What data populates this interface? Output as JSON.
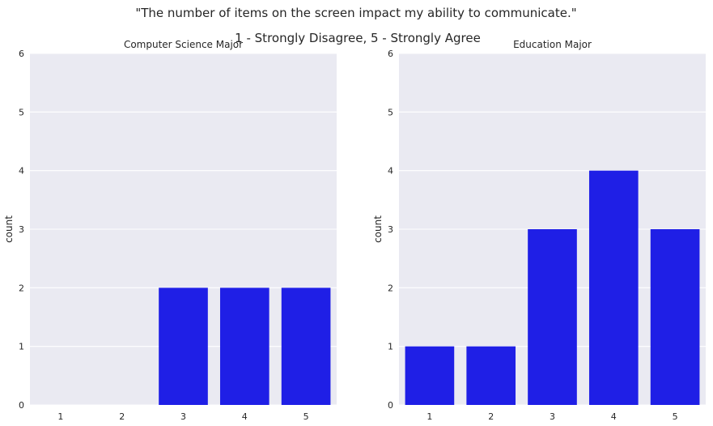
{
  "figure": {
    "suptitle": "\"The number of items on the screen impact my ability to communicate.\"",
    "subtitle": "1 - Strongly Disagree, 5 - Strongly Agree"
  },
  "colors": {
    "axes_background": "#eaeaf2",
    "bar": "#1f1fe6",
    "grid": "#ffffff"
  },
  "chart_data": [
    {
      "type": "bar",
      "title": "Computer Science Major",
      "xlabel": "",
      "ylabel": "count",
      "categories": [
        "1",
        "2",
        "3",
        "4",
        "5"
      ],
      "values": [
        0,
        0,
        2,
        2,
        2
      ],
      "ylim": [
        0,
        6
      ],
      "yticks": [
        "0",
        "1",
        "2",
        "3",
        "4",
        "5",
        "6"
      ],
      "grid": true
    },
    {
      "type": "bar",
      "title": "Education Major",
      "xlabel": "",
      "ylabel": "count",
      "categories": [
        "1",
        "2",
        "3",
        "4",
        "5"
      ],
      "values": [
        1,
        1,
        3,
        4,
        3
      ],
      "ylim": [
        0,
        6
      ],
      "yticks": [
        "0",
        "1",
        "2",
        "3",
        "4",
        "5",
        "6"
      ],
      "grid": true
    }
  ]
}
